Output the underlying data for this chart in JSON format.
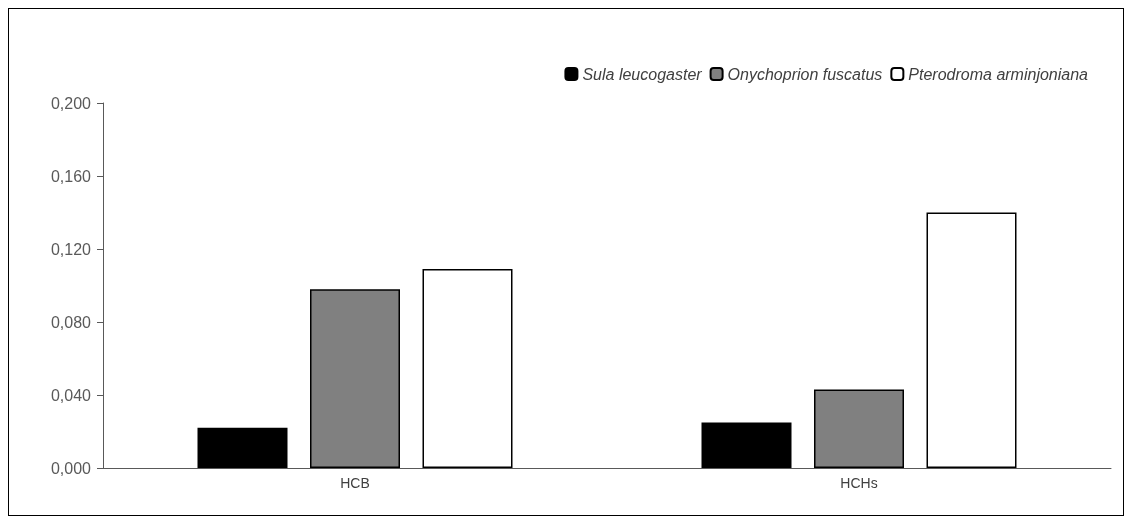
{
  "chart_data": {
    "type": "bar",
    "categories": [
      "HCB",
      "HCHs"
    ],
    "series": [
      {
        "name": "Sula leucogaster",
        "color": "#000000",
        "values": [
          0.022,
          0.025
        ]
      },
      {
        "name": "Onychoprion fuscatus",
        "color": "#808080",
        "values": [
          0.098,
          0.043
        ]
      },
      {
        "name": "Pterodroma arminjoniana",
        "color": "#ffffff",
        "values": [
          0.109,
          0.14
        ]
      }
    ],
    "ylim": [
      0,
      0.2
    ],
    "yticks": [
      {
        "value": 0,
        "label": "0,000"
      },
      {
        "value": 0.04,
        "label": "0,040"
      },
      {
        "value": 0.08,
        "label": "0,080"
      },
      {
        "value": 0.12,
        "label": "0,120"
      },
      {
        "value": 0.16,
        "label": "0,160"
      },
      {
        "value": 0.2,
        "label": "0,200"
      }
    ],
    "grid": false,
    "legend": "top right"
  }
}
